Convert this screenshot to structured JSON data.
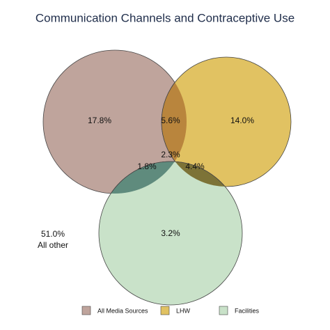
{
  "chart_data": {
    "type": "venn",
    "title": "Communication Channels and Contraceptive Use",
    "series": [
      {
        "name": "All Media Sources",
        "color": "#bfa49c"
      },
      {
        "name": "LHW",
        "color": "#e1c262"
      },
      {
        "name": "Facilities",
        "color": "#c9e2c9"
      }
    ],
    "values": [
      17.8,
      14.0,
      3.2,
      5.6,
      1.8,
      4.4,
      2.3
    ],
    "value_labels": [
      "17.8%",
      "14.0%",
      "3.2%",
      "5.6%",
      "1.8%",
      "4.4%",
      "2.3%"
    ],
    "region_colors": [
      "#bfa49c",
      "#e1c262",
      "#c9e2c9",
      "#b9853d",
      "#5f8b7d",
      "#7d7337",
      "#a29ae8"
    ],
    "other": {
      "value": 51.0,
      "value_label": "51.0%",
      "label": "All other"
    }
  }
}
